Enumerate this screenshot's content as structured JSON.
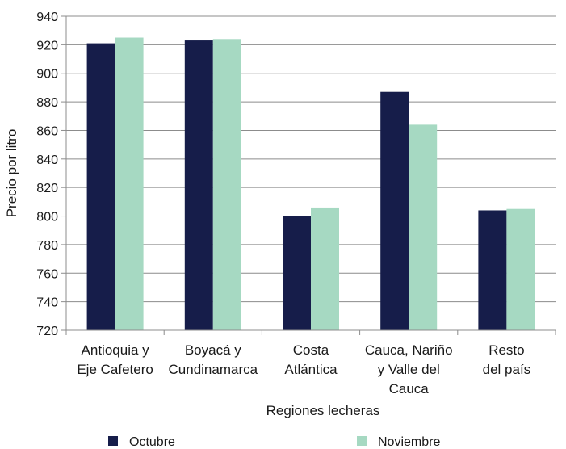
{
  "chart_data": {
    "type": "bar",
    "categories": [
      [
        "Antioquia y",
        "Eje Cafetero"
      ],
      [
        "Boyacá y",
        "Cundinamarca"
      ],
      [
        "Costa",
        "Atlántica"
      ],
      [
        "Cauca, Nariño",
        "y Valle del",
        "Cauca"
      ],
      [
        "Resto",
        "del país"
      ]
    ],
    "series": [
      {
        "name": "Octubre",
        "color": "#161d4a",
        "values": [
          921,
          923,
          800,
          887,
          804
        ]
      },
      {
        "name": "Noviembre",
        "color": "#a6d9c2",
        "values": [
          925,
          924,
          806,
          864,
          805
        ]
      }
    ],
    "xlabel": "Regiones lecheras",
    "ylabel": "Precio por litro",
    "ylim": [
      720,
      940
    ],
    "yticks": [
      720,
      740,
      760,
      780,
      800,
      820,
      840,
      860,
      880,
      900,
      920,
      940
    ],
    "grid": true,
    "legend_position": "bottom"
  }
}
